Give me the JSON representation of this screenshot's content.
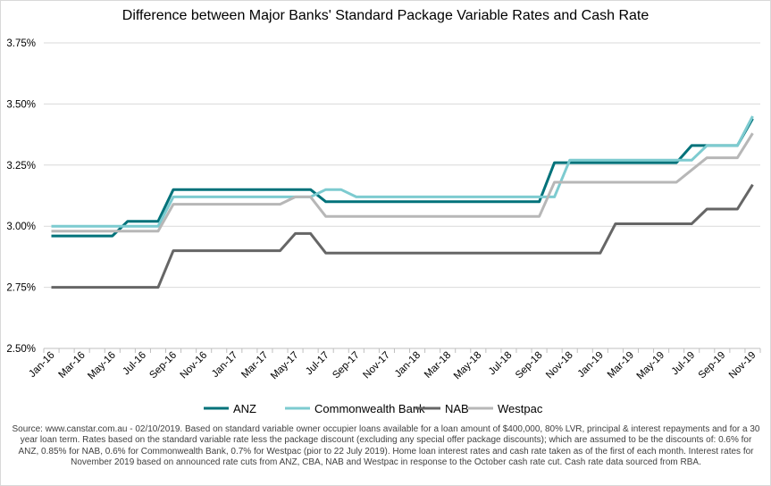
{
  "chart_data": {
    "type": "line",
    "title": "Difference between Major Banks' Standard Package Variable Rates and Cash Rate",
    "xlabel": "",
    "ylabel": "",
    "ylim": [
      0.025,
      0.0375
    ],
    "yticks": [
      "2.50%",
      "2.75%",
      "3.00%",
      "3.25%",
      "3.50%",
      "3.75%"
    ],
    "x_tick_labels": [
      "Jan-16",
      "Mar-16",
      "May-16",
      "Jul-16",
      "Sep-16",
      "Nov-16",
      "Jan-17",
      "Mar-17",
      "May-17",
      "Jul-17",
      "Sep-17",
      "Nov-17",
      "Jan-18",
      "Mar-18",
      "May-18",
      "Jul-18",
      "Sep-18",
      "Nov-18",
      "Jan-19",
      "Mar-19",
      "May-19",
      "Jul-19",
      "Sep-19",
      "Nov-19"
    ],
    "grid": "horizontal",
    "legend_position": "bottom",
    "series": [
      {
        "name": "ANZ",
        "color": "#00727a",
        "points": [
          [
            "Jan-16",
            0.0296
          ],
          [
            "May-16",
            0.0296
          ],
          [
            "Jun-16",
            0.0302
          ],
          [
            "Aug-16",
            0.0302
          ],
          [
            "Sep-16",
            0.0315
          ],
          [
            "Jun-17",
            0.0315
          ],
          [
            "Jul-17",
            0.031
          ],
          [
            "Sep-18",
            0.031
          ],
          [
            "Oct-18",
            0.0326
          ],
          [
            "Jun-19",
            0.0326
          ],
          [
            "Jul-19",
            0.0333
          ],
          [
            "Aug-19",
            0.0333
          ],
          [
            "Oct-19",
            0.0333
          ],
          [
            "Nov-19",
            0.0344
          ]
        ]
      },
      {
        "name": "Commonwealth Bank",
        "color": "#7dcbd0",
        "points": [
          [
            "Jan-16",
            0.03
          ],
          [
            "Aug-16",
            0.03
          ],
          [
            "Sep-16",
            0.0312
          ],
          [
            "Jun-17",
            0.0312
          ],
          [
            "Jul-17",
            0.0315
          ],
          [
            "Aug-17",
            0.0315
          ],
          [
            "Sep-17",
            0.0312
          ],
          [
            "Sep-18",
            0.0312
          ],
          [
            "Oct-18",
            0.0312
          ],
          [
            "Nov-18",
            0.0327
          ],
          [
            "Jul-19",
            0.0327
          ],
          [
            "Aug-19",
            0.0333
          ],
          [
            "Oct-19",
            0.0333
          ],
          [
            "Nov-19",
            0.0345
          ]
        ]
      },
      {
        "name": "NAB",
        "color": "#666666",
        "points": [
          [
            "Jan-16",
            0.0275
          ],
          [
            "Aug-16",
            0.0275
          ],
          [
            "Sep-16",
            0.029
          ],
          [
            "Apr-17",
            0.029
          ],
          [
            "May-17",
            0.0297
          ],
          [
            "Jun-17",
            0.0297
          ],
          [
            "Jul-17",
            0.0289
          ],
          [
            "Jan-19",
            0.0289
          ],
          [
            "Feb-19",
            0.0301
          ],
          [
            "Jul-19",
            0.0301
          ],
          [
            "Aug-19",
            0.0307
          ],
          [
            "Oct-19",
            0.0307
          ],
          [
            "Nov-19",
            0.0317
          ]
        ]
      },
      {
        "name": "Westpac",
        "color": "#b7b7b7",
        "points": [
          [
            "Jan-16",
            0.0298
          ],
          [
            "Aug-16",
            0.0298
          ],
          [
            "Sep-16",
            0.0309
          ],
          [
            "Apr-17",
            0.0309
          ],
          [
            "May-17",
            0.0312
          ],
          [
            "Jun-17",
            0.0312
          ],
          [
            "Jul-17",
            0.0304
          ],
          [
            "Sep-18",
            0.0304
          ],
          [
            "Oct-18",
            0.0318
          ],
          [
            "Jun-19",
            0.0318
          ],
          [
            "Aug-19",
            0.0328
          ],
          [
            "Oct-19",
            0.0328
          ],
          [
            "Nov-19",
            0.0338
          ]
        ]
      }
    ]
  },
  "source_note": "Source:  www.canstar.com.au - 02/10/2019.  Based on standard variable owner occupier loans available for a loan amount of $400,000, 80% LVR, principal & interest repayments and for a 30 year loan term.  Rates based on the standard variable rate less the package discount (excluding any special offer package discounts); which are assumed to be the discounts of: 0.6% for ANZ, 0.85% for NAB, 0.6% for Commonwealth Bank, 0.7% for Westpac (pior to 22 July 2019).  Home loan interest rates and cash rate taken as of the first of each month. Interest rates for November 2019 based on announced rate cuts from ANZ, CBA, NAB and Westpac in response to the October cash rate cut.  Cash rate data sourced from RBA."
}
